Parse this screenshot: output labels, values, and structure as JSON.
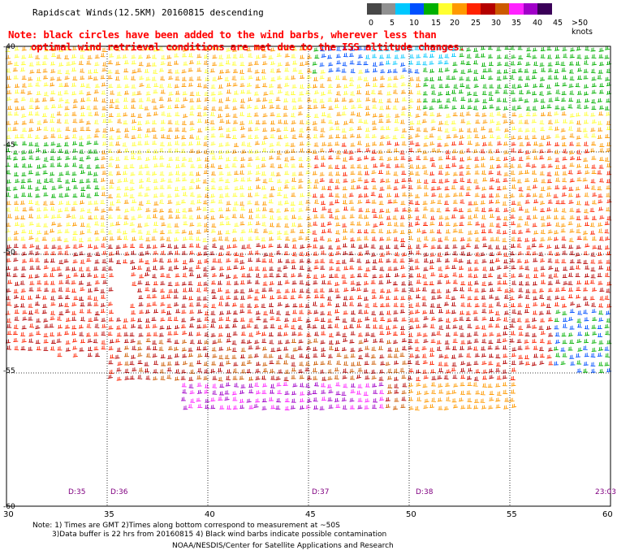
{
  "title": "Rapidscat Winds(12.5KM) 20160815 descending",
  "note_line1": "Note: black circles have been added to the wind barbs, wherever less than",
  "note_line2": "optimal wind retrieval conditions are met due to the ISS altitude changes.",
  "legend": {
    "labels": [
      "0",
      "5",
      "10",
      "15",
      "20",
      "25",
      "30",
      "35",
      "40",
      "45",
      ">50 knots"
    ],
    "colors": [
      "#474747",
      "#909090",
      "#00c8ff",
      "#0050ff",
      "#00b000",
      "#ffff30",
      "#ff9900",
      "#ff2200",
      "#b40000",
      "#cc5a00",
      "#ff22ff",
      "#a000c8",
      "#3a0058"
    ]
  },
  "axes": {
    "lat_labels": [
      "-40",
      "-45",
      "-50",
      "-55",
      "-60"
    ],
    "lon_labels": [
      "30",
      "35",
      "40",
      "45",
      "50",
      "55",
      "60"
    ]
  },
  "times": [
    "D:35",
    "D:36",
    "D:37",
    "D:38",
    "23:03"
  ],
  "footer": {
    "line1": "Note: 1) Times are GMT 2)Times along bottom correspond to measurement at ~50S",
    "line2": "3)Data buffer is 22 hrs from 20160815 4) Black wind barbs indicate possible contamination",
    "line3": "NOAA/NESDIS/Center for Satellite Applications and Research"
  }
}
